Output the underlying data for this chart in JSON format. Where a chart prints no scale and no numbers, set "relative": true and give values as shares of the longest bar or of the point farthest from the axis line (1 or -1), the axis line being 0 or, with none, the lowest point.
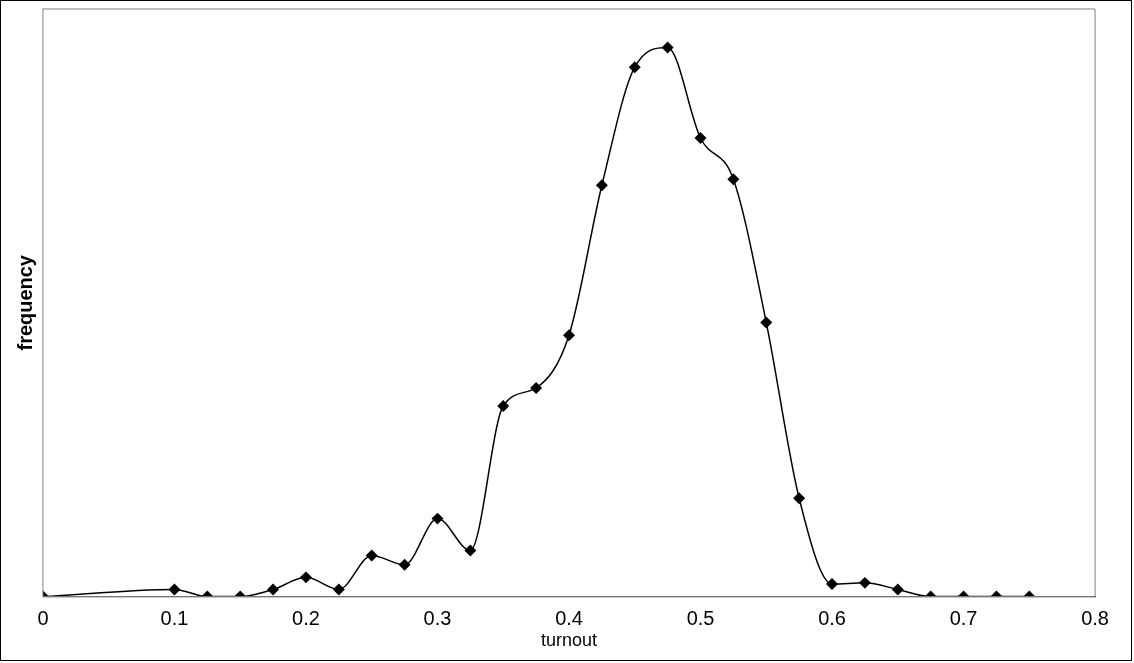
{
  "chart_data": {
    "type": "line",
    "relative": true,
    "xlabel": "turnout",
    "ylabel": "frequency",
    "x": [
      0,
      0.1,
      0.125,
      0.15,
      0.175,
      0.2,
      0.225,
      0.25,
      0.275,
      0.3,
      0.325,
      0.35,
      0.375,
      0.4,
      0.425,
      0.45,
      0.475,
      0.5,
      0.525,
      0.55,
      0.575,
      0.6,
      0.625,
      0.65,
      0.675,
      0.7,
      0.725,
      0.75
    ],
    "series": [
      {
        "color": "#000000",
        "values": [
          0,
          0.013,
          0,
          0,
          0.013,
          0.035,
          0.013,
          0.075,
          0.058,
          0.142,
          0.084,
          0.347,
          0.38,
          0.476,
          0.749,
          0.964,
          1,
          0.835,
          0.76,
          0.499,
          0.179,
          0.023,
          0.025,
          0.013,
          0,
          0,
          0,
          0
        ]
      }
    ],
    "xlim": [
      0,
      0.8
    ],
    "xticks": [
      0,
      0.1,
      0.2,
      0.3,
      0.4,
      0.5,
      0.6,
      0.7,
      0.8
    ],
    "marker": "diamond",
    "line_style": "solid",
    "grid": false,
    "legend": false
  }
}
